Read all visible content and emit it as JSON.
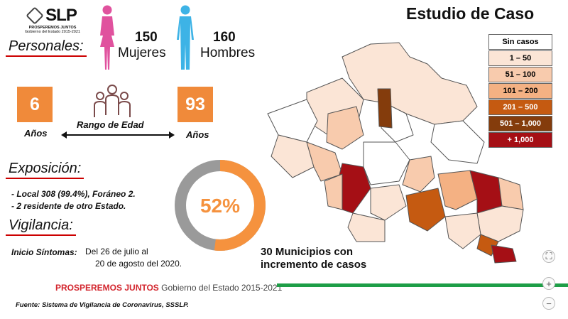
{
  "header": {
    "logo_text": "SLP",
    "logo_sub1": "PROSPEREMOS JUNTOS",
    "logo_sub2": "Gobierno del Estado 2015-2021",
    "title": "Estudio de Caso"
  },
  "personales": {
    "heading": "Personales:",
    "women_count": "150",
    "women_label": "Mujeres",
    "men_count": "160",
    "men_label": "Hombres",
    "colors": {
      "women": "#e0529e",
      "men": "#3db3e6"
    }
  },
  "age": {
    "min": "6",
    "min_unit": "Años",
    "range_label": "Rango de Edad",
    "max": "93",
    "max_unit": "Años"
  },
  "exposicion": {
    "heading": "Exposición:",
    "line1": "- Local 308 (99.4%), Foráneo 2.",
    "line2": "- 2 residente de otro Estado."
  },
  "vigilancia": {
    "heading": "Vigilancia:",
    "label": "Inicio Síntomas:",
    "value1": "Del 26 de julio al",
    "value2": "20 de agosto del 2020."
  },
  "donut": {
    "percent_text": "52%",
    "fraction": 0.52,
    "color": "#f5923e",
    "rest_color": "#9a9a9a"
  },
  "municipios": {
    "line1": "30  Municipios con",
    "line2": "incremento de casos"
  },
  "legend": [
    {
      "label": "Sin casos",
      "color": "#ffffff",
      "text_color": "#000000"
    },
    {
      "label": "1 – 50",
      "color": "#fbe5d6",
      "text_color": "#000000"
    },
    {
      "label": "51 – 100",
      "color": "#f8cbad",
      "text_color": "#000000"
    },
    {
      "label": "101 – 200",
      "color": "#f4b183",
      "text_color": "#000000"
    },
    {
      "label": "201 – 500",
      "color": "#c55a11",
      "text_color": "#ffffff"
    },
    {
      "label": "501 – 1,000",
      "color": "#843c0c",
      "text_color": "#ffffff"
    },
    {
      "label": "+ 1,000",
      "color": "#a50f15",
      "text_color": "#ffffff"
    }
  ],
  "footer": {
    "brand1": "PROSPEREMOS JUNTOS",
    "brand2": "Gobierno del Estado 2015-2021",
    "source": "Fuente: Sistema de Vigilancia de Coronavirus, SSSLP."
  },
  "controls": {
    "fit": "⛶",
    "zoom_in": "+",
    "zoom_out": "−"
  }
}
